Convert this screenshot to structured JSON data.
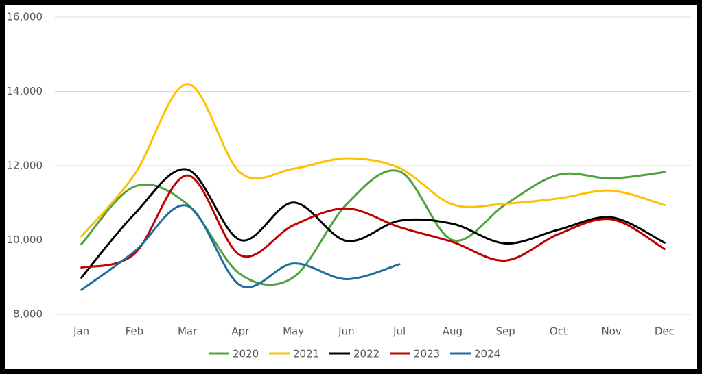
{
  "chart_data": {
    "type": "line",
    "categories": [
      "Jan",
      "Feb",
      "Mar",
      "Apr",
      "May",
      "Jun",
      "Jul",
      "Aug",
      "Sep",
      "Oct",
      "Nov",
      "Dec"
    ],
    "series": [
      {
        "name": "2020",
        "color": "#4ea23d",
        "values": [
          9890,
          11440,
          10960,
          9080,
          9000,
          10960,
          11850,
          10000,
          10960,
          11760,
          11660,
          11830
        ]
      },
      {
        "name": "2021",
        "color": "#ffc000",
        "values": [
          10100,
          11760,
          14200,
          11810,
          11920,
          12200,
          11940,
          10960,
          10980,
          11120,
          11330,
          10940
        ]
      },
      {
        "name": "2022",
        "color": "#000000",
        "values": [
          8990,
          10700,
          11900,
          10000,
          11010,
          9980,
          10520,
          10440,
          9910,
          10280,
          10610,
          9930
        ]
      },
      {
        "name": "2023",
        "color": "#c00000",
        "values": [
          9260,
          9630,
          11740,
          9590,
          10400,
          10850,
          10350,
          9950,
          9450,
          10160,
          10560,
          9760
        ]
      },
      {
        "name": "2024",
        "color": "#1f6e9c",
        "values": [
          8660,
          9690,
          10920,
          8780,
          9370,
          8950,
          9350,
          null,
          null,
          null,
          null,
          null
        ]
      }
    ],
    "ylim": [
      8000,
      16000
    ],
    "yticks": [
      {
        "value": 8000,
        "label": "8,000"
      },
      {
        "value": 10000,
        "label": "10,000"
      },
      {
        "value": 12000,
        "label": "12,000"
      },
      {
        "value": 14000,
        "label": "14,000"
      },
      {
        "value": 16000,
        "label": "16,000"
      }
    ],
    "grid": true,
    "legend": "bottom",
    "smooth": true
  }
}
